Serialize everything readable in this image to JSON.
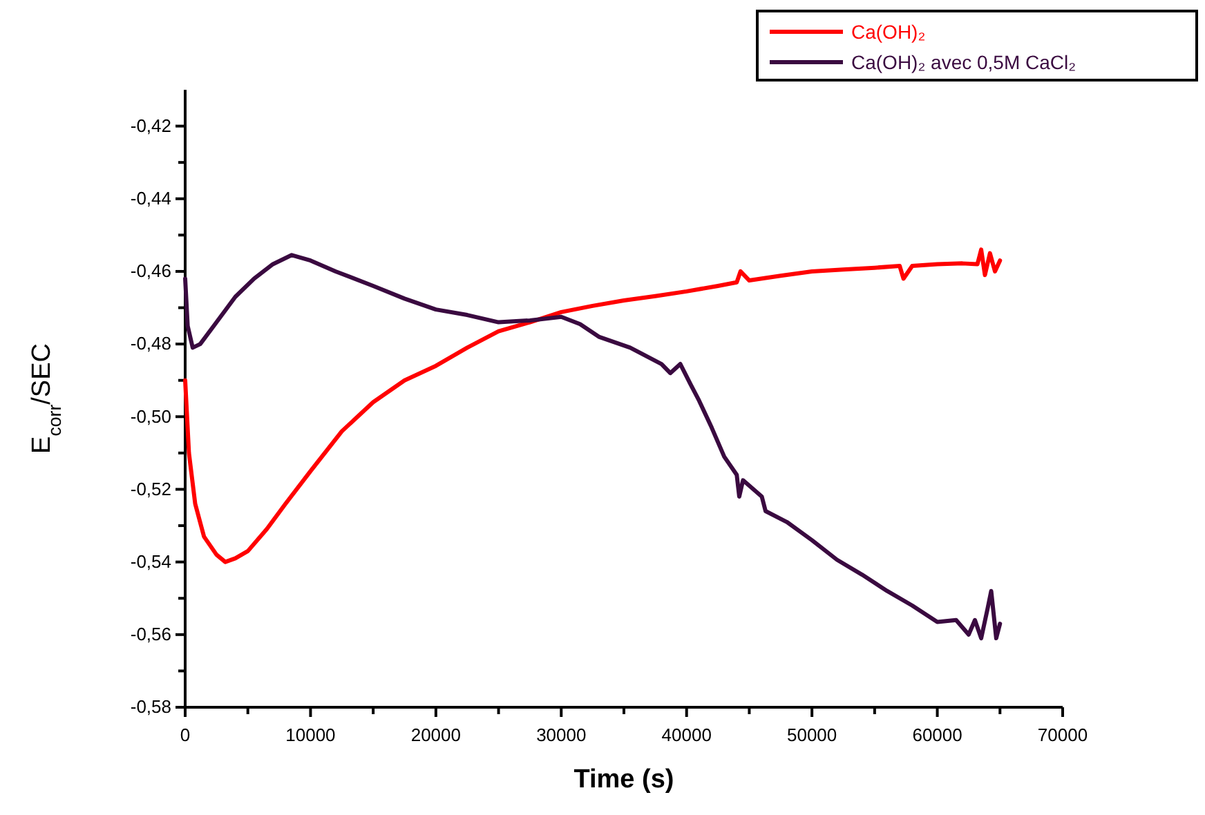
{
  "chart_data": {
    "type": "line",
    "xlabel": "Time (s)",
    "ylabel": "E$_{corr}$/SEC",
    "xlim": [
      0,
      70000
    ],
    "ylim": [
      -0.58,
      -0.41
    ],
    "xticks": [
      0,
      {
        "value": 5000,
        "label": null
      },
      10000,
      {
        "value": 15000,
        "label": null
      },
      20000,
      {
        "value": 25000,
        "label": null
      },
      30000,
      {
        "value": 35000,
        "label": null
      },
      40000,
      {
        "value": 45000,
        "label": null
      },
      50000,
      {
        "value": 55000,
        "label": null
      },
      60000,
      {
        "value": 65000,
        "label": null
      },
      70000
    ],
    "yticks": [
      {
        "value": -0.58,
        "label": "-0,58"
      },
      {
        "value": -0.57,
        "label": null
      },
      {
        "value": -0.56,
        "label": "-0,56"
      },
      {
        "value": -0.55,
        "label": null
      },
      {
        "value": -0.54,
        "label": "-0,54"
      },
      {
        "value": -0.53,
        "label": null
      },
      {
        "value": -0.52,
        "label": "-0,52"
      },
      {
        "value": -0.51,
        "label": null
      },
      {
        "value": -0.5,
        "label": "-0,50"
      },
      {
        "value": -0.49,
        "label": null
      },
      {
        "value": -0.48,
        "label": "-0,48"
      },
      {
        "value": -0.47,
        "label": null
      },
      {
        "value": -0.46,
        "label": "-0,46"
      },
      {
        "value": -0.45,
        "label": null
      },
      {
        "value": -0.44,
        "label": "-0,44"
      },
      {
        "value": -0.43,
        "label": null
      },
      {
        "value": -0.42,
        "label": "-0,42"
      }
    ],
    "grid": false,
    "legend": "top right",
    "marker": "none",
    "line_style": "solid",
    "series": [
      {
        "name": "Ca(OH)₂",
        "color": "#ff0000",
        "x": [
          0,
          300,
          800,
          1500,
          2500,
          3200,
          4000,
          5000,
          6500,
          8000,
          10000,
          12500,
          15000,
          17500,
          20000,
          22500,
          25000,
          27500,
          30000,
          32500,
          35000,
          37500,
          40000,
          42500,
          44000,
          44300,
          45000,
          47500,
          50000,
          52500,
          55000,
          57000,
          57300,
          58000,
          60000,
          62000,
          63200,
          63500,
          63800,
          64200,
          64600,
          65000
        ],
        "values": [
          -0.49,
          -0.51,
          -0.524,
          -0.533,
          -0.538,
          -0.54,
          -0.539,
          -0.537,
          -0.531,
          -0.524,
          -0.515,
          -0.504,
          -0.496,
          -0.49,
          -0.486,
          -0.481,
          -0.4765,
          -0.474,
          -0.4712,
          -0.4695,
          -0.468,
          -0.4668,
          -0.4655,
          -0.464,
          -0.463,
          -0.46,
          -0.4625,
          -0.4612,
          -0.46,
          -0.4595,
          -0.459,
          -0.4585,
          -0.462,
          -0.4585,
          -0.458,
          -0.4578,
          -0.458,
          -0.454,
          -0.461,
          -0.455,
          -0.46,
          -0.457
        ]
      },
      {
        "name": "Ca(OH)₂ avec 0,5M CaCl₂",
        "color": "#3a0a40",
        "x": [
          0,
          200,
          600,
          1200,
          2500,
          4000,
          5500,
          7000,
          8500,
          10000,
          12000,
          15000,
          17500,
          20000,
          22500,
          25000,
          27500,
          30000,
          31500,
          33000,
          35500,
          38000,
          38700,
          39500,
          40300,
          41000,
          42000,
          43000,
          44000,
          44200,
          44500,
          46000,
          46300,
          48000,
          50000,
          52000,
          54000,
          56000,
          58000,
          60000,
          61500,
          62500,
          63000,
          63500,
          64000,
          64300,
          64700,
          65000
        ],
        "values": [
          -0.462,
          -0.475,
          -0.481,
          -0.48,
          -0.474,
          -0.467,
          -0.462,
          -0.458,
          -0.4555,
          -0.457,
          -0.46,
          -0.464,
          -0.4675,
          -0.4705,
          -0.472,
          -0.474,
          -0.4735,
          -0.4725,
          -0.4745,
          -0.478,
          -0.481,
          -0.4855,
          -0.488,
          -0.4855,
          -0.491,
          -0.4956,
          -0.503,
          -0.511,
          -0.516,
          -0.522,
          -0.5175,
          -0.522,
          -0.526,
          -0.529,
          -0.534,
          -0.5394,
          -0.5435,
          -0.548,
          -0.552,
          -0.5565,
          -0.556,
          -0.56,
          -0.556,
          -0.561,
          -0.553,
          -0.548,
          -0.561,
          -0.557
        ]
      }
    ]
  }
}
